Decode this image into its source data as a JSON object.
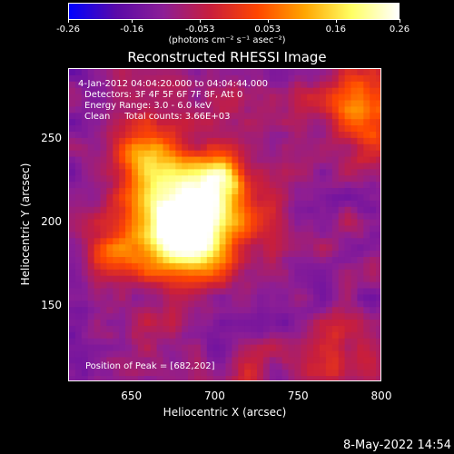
{
  "chart_data": {
    "type": "heatmap",
    "title": "Reconstructed RHESSI Image",
    "xlabel": "Heliocentric X (arcsec)",
    "ylabel": "Heliocentric Y (arcsec)",
    "xlim": [
      612,
      800
    ],
    "ylim": [
      104,
      292
    ],
    "x_ticks": [
      650,
      700,
      750,
      800
    ],
    "y_ticks": [
      150,
      200,
      250
    ],
    "peak": [
      682,
      202
    ],
    "colorbar": {
      "range": [
        -0.26,
        0.26
      ],
      "ticks": [
        "-0.26",
        "-0.16",
        "-0.053",
        "0.053",
        "0.16",
        "0.26"
      ],
      "unit": "(photons cm⁻² s⁻¹ asec⁻²)",
      "colors": [
        "#0000ff",
        "#5a0aa8",
        "#8c1e96",
        "#c81e3c",
        "#ff4600",
        "#ffa500",
        "#ffff64",
        "#ffffff"
      ]
    },
    "annotations": {
      "time_range": "4-Jan-2012 04:04:20.000 to 04:04:44.000",
      "detectors": "Detectors: 3F 4F 5F 6F 7F 8F, Att 0",
      "energy": "Energy Range: 3.0 - 6.0 keV",
      "method": "Clean     Total counts: 3.66E+03",
      "peak_text": "Position of Peak = [682,202]"
    }
  },
  "timestamp": "8-May-2022 14:54"
}
